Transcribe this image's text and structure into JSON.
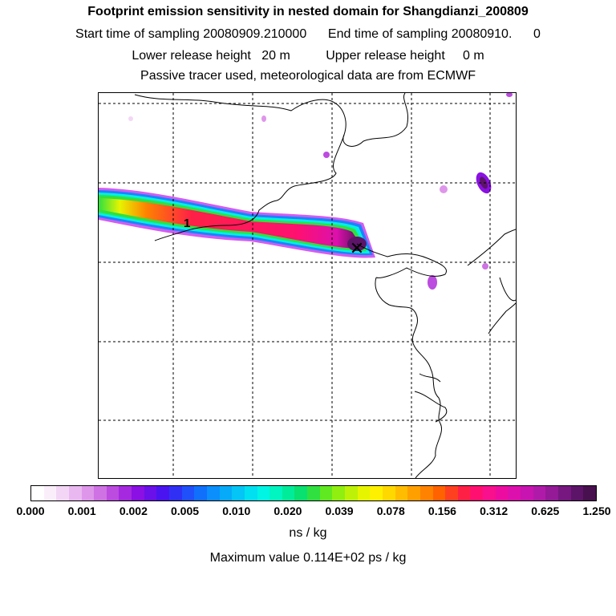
{
  "header": {
    "title": "Footprint emission sensitivity in nested domain for Shangdianzi_200809",
    "sampling_line": "Start time of sampling 20080909.210000      End time of sampling 20080910.      0",
    "release_line": "Lower release height   20 m          Upper release height     0 m",
    "tracer_line": "Passive tracer used, meteorological data are from ECMWF"
  },
  "map": {
    "site_marker_label": "1",
    "release_symbol": "✕",
    "coastline_color": "#000000",
    "grid_color": "#000000"
  },
  "colorbar": {
    "tick_labels": [
      "0.000",
      "0.001",
      "0.002",
      "0.005",
      "0.010",
      "0.020",
      "0.039",
      "0.078",
      "0.156",
      "0.312",
      "0.625",
      "1.250"
    ],
    "colors": [
      "#ffffff",
      "#fbeefb",
      "#f3d6f6",
      "#e9b8f0",
      "#de96ea",
      "#cf72e4",
      "#bc4be0",
      "#a52adf",
      "#8a10e3",
      "#6a10e8",
      "#4a14f0",
      "#3030f5",
      "#2050fa",
      "#1070fc",
      "#0a8ffc",
      "#06aaf8",
      "#04c5f5",
      "#00e0f0",
      "#00f5e4",
      "#00f5c0",
      "#00ec9a",
      "#08e070",
      "#30e040",
      "#60e820",
      "#90ee10",
      "#bdf208",
      "#e6f400",
      "#fff000",
      "#ffd800",
      "#ffbc00",
      "#ffa000",
      "#ff8200",
      "#ff6200",
      "#ff4020",
      "#ff2046",
      "#ff1070",
      "#f8108c",
      "#ec0ca0",
      "#dc10ac",
      "#c814b0",
      "#b01aa8",
      "#941a98",
      "#761880",
      "#5c1468",
      "#48104e"
    ]
  },
  "units": "ns / kg",
  "max_value_line": "Maximum value  0.114E+02 ps / kg"
}
